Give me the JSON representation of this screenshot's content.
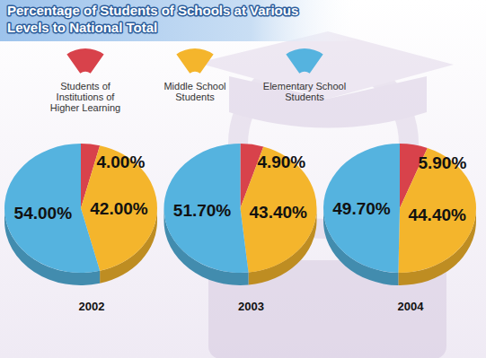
{
  "chart_data": {
    "type": "pie",
    "title": "Percentage of Students of Schools at Various Levels to National Total",
    "categories": [
      "2002",
      "2003",
      "2004"
    ],
    "series": [
      {
        "name": "Students of Institutions of Higher Learning",
        "color": "#d8424b",
        "values": [
          4,
          4.9,
          5.9
        ],
        "value_labels": [
          "4.00%",
          "4.90%",
          "5.90%"
        ]
      },
      {
        "name": "Middle School Students",
        "color": "#f4b52c",
        "values": [
          42,
          43.4,
          44.4
        ],
        "value_labels": [
          "42.00%",
          "43.40%",
          "44.40%"
        ]
      },
      {
        "name": "Elementary School Students",
        "color": "#55b3df",
        "values": [
          54,
          51.7,
          49.7
        ],
        "value_labels": [
          "54.00%",
          "51.70%",
          "49.70%"
        ]
      }
    ],
    "data_labels": true,
    "legend": "top"
  }
}
